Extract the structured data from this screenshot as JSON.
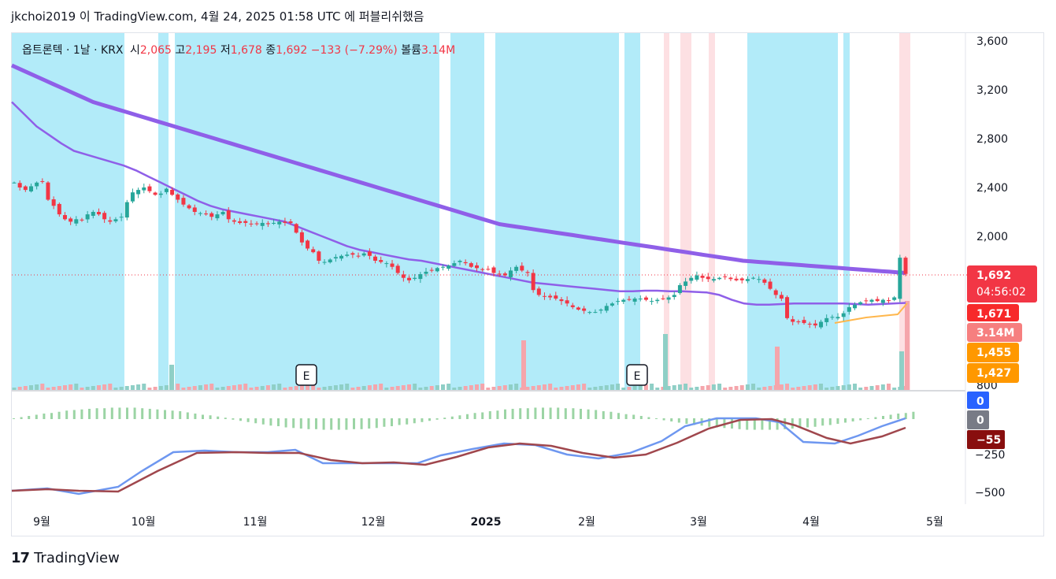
{
  "header": {
    "text": "jkchoi2019 이 TradingView.com, 4월 24, 2025 01:58 UTC 에 퍼블리쉬했음"
  },
  "legend": {
    "symbol": "옵트론텍 · 1날 · KRX",
    "open_label": "시",
    "open": "2,065",
    "high_label": "고",
    "high": "2,195",
    "low_label": "저",
    "low": "1,678",
    "close_label": "종",
    "close": "1,692",
    "change": "−133 (−7.29%)",
    "volume_label": "볼륨",
    "volume": "3.14M"
  },
  "footer": {
    "brand": "TradingView",
    "logo": "17"
  },
  "colors": {
    "up": "#26a69a",
    "down": "#f23645",
    "bg_blue": "#b2ebf9",
    "bg_pink": "#fde0e3",
    "ma": "#8f5fe8",
    "ma_fast": "#ffb74d",
    "macd": "#6e97f0",
    "signal": "#a0474d"
  },
  "chart_data": [
    {
      "type": "candlestick",
      "title": "옵트론텍 · 1날 · KRX",
      "x_ticks": [
        "9월",
        "10월",
        "11월",
        "12월",
        "2025",
        "2월",
        "3월",
        "4월",
        "5월"
      ],
      "y_ticks": [
        "3,600",
        "3,200",
        "2,800",
        "2,400",
        "2,000",
        "800"
      ],
      "ylim": [
        800,
        3600
      ],
      "price_close": [
        2440,
        2400,
        2380,
        2410,
        2440,
        2450,
        2300,
        2250,
        2180,
        2140,
        2120,
        2140,
        2130,
        2180,
        2200,
        2180,
        2140,
        2120,
        2140,
        2160,
        2280,
        2360,
        2380,
        2400,
        2370,
        2340,
        2350,
        2390,
        2340,
        2300,
        2260,
        2230,
        2200,
        2190,
        2180,
        2160,
        2180,
        2200,
        2140,
        2120,
        2110,
        2110,
        2100,
        2100,
        2110,
        2100,
        2110,
        2120,
        2110,
        2110,
        2030,
        1950,
        1900,
        1870,
        1800,
        1790,
        1810,
        1830,
        1840,
        1850,
        1850,
        1840,
        1860,
        1840,
        1800,
        1790,
        1780,
        1750,
        1700,
        1660,
        1640,
        1660,
        1690,
        1710,
        1720,
        1740,
        1750,
        1760,
        1780,
        1800,
        1780,
        1750,
        1740,
        1730,
        1730,
        1700,
        1690,
        1680,
        1720,
        1750,
        1720,
        1700,
        1560,
        1520,
        1510,
        1500,
        1490,
        1470,
        1450,
        1420,
        1400,
        1390,
        1380,
        1380,
        1400,
        1430,
        1450,
        1470,
        1480,
        1480,
        1490,
        1490,
        1480,
        1470,
        1480,
        1490,
        1500,
        1520,
        1600,
        1630,
        1660,
        1680,
        1660,
        1650,
        1650,
        1660,
        1670,
        1650,
        1640,
        1640,
        1650,
        1660,
        1650,
        1620,
        1570,
        1520,
        1490,
        1330,
        1300,
        1300,
        1290,
        1280,
        1270,
        1300,
        1330,
        1340,
        1340,
        1370,
        1420,
        1440,
        1460,
        1470,
        1480,
        1470,
        1480,
        1470,
        1500,
        1825,
        1692
      ],
      "ma_long": [
        3400,
        3370,
        3340,
        3310,
        3280,
        3250,
        3220,
        3190,
        3160,
        3130,
        3100,
        3080,
        3060,
        3040,
        3020,
        3000,
        2980,
        2960,
        2940,
        2920,
        2900,
        2880,
        2860,
        2840,
        2820,
        2800,
        2780,
        2760,
        2740,
        2720,
        2700,
        2680,
        2660,
        2640,
        2620,
        2600,
        2580,
        2560,
        2540,
        2520,
        2500,
        2480,
        2460,
        2440,
        2420,
        2400,
        2380,
        2360,
        2340,
        2320,
        2300,
        2280,
        2260,
        2240,
        2220,
        2200,
        2180,
        2160,
        2140,
        2120,
        2100,
        2090,
        2080,
        2070,
        2060,
        2050,
        2040,
        2030,
        2020,
        2010,
        2000,
        1990,
        1980,
        1970,
        1960,
        1950,
        1940,
        1930,
        1920,
        1910,
        1900,
        1890,
        1880,
        1870,
        1860,
        1850,
        1840,
        1830,
        1820,
        1810,
        1800,
        1795,
        1790,
        1785,
        1780,
        1775,
        1770,
        1765,
        1760,
        1755,
        1750,
        1745,
        1740,
        1735,
        1730,
        1725,
        1720,
        1715,
        1710,
        1705,
        1700
      ],
      "ma_mid": [
        3100,
        3000,
        2900,
        2830,
        2760,
        2700,
        2670,
        2640,
        2610,
        2580,
        2540,
        2490,
        2440,
        2390,
        2340,
        2290,
        2250,
        2220,
        2200,
        2180,
        2160,
        2140,
        2120,
        2080,
        2040,
        2000,
        1960,
        1920,
        1890,
        1870,
        1850,
        1830,
        1810,
        1800,
        1780,
        1760,
        1740,
        1720,
        1700,
        1680,
        1660,
        1640,
        1620,
        1610,
        1600,
        1590,
        1580,
        1570,
        1560,
        1550,
        1550,
        1555,
        1555,
        1550,
        1550,
        1545,
        1540,
        1520,
        1480,
        1450,
        1440,
        1440,
        1445,
        1450,
        1450,
        1450,
        1450,
        1450,
        1445,
        1440,
        1445,
        1450,
        1455
      ],
      "volume_scale_note": "histogram",
      "macd_ticks": [
        "0",
        "−250",
        "−500"
      ],
      "macd_ylim": [
        -550,
        50
      ],
      "price_labels": [
        {
          "value": "1,692",
          "sub": "04:56:02",
          "color": "#f23645"
        },
        {
          "value": "1,671",
          "color": "#f7292a"
        },
        {
          "value": "3.14M",
          "color": "#f67f7f"
        },
        {
          "value": "1,455",
          "color": "#ff9800"
        },
        {
          "value": "1,427",
          "color": "#ff9800"
        }
      ],
      "macd_labels": [
        {
          "value": "0",
          "color": "#2962ff"
        },
        {
          "value": "0",
          "color": "#787b86"
        },
        {
          "value": "−55",
          "color": "#880e0e"
        }
      ],
      "events": [
        "E",
        "E"
      ]
    }
  ]
}
